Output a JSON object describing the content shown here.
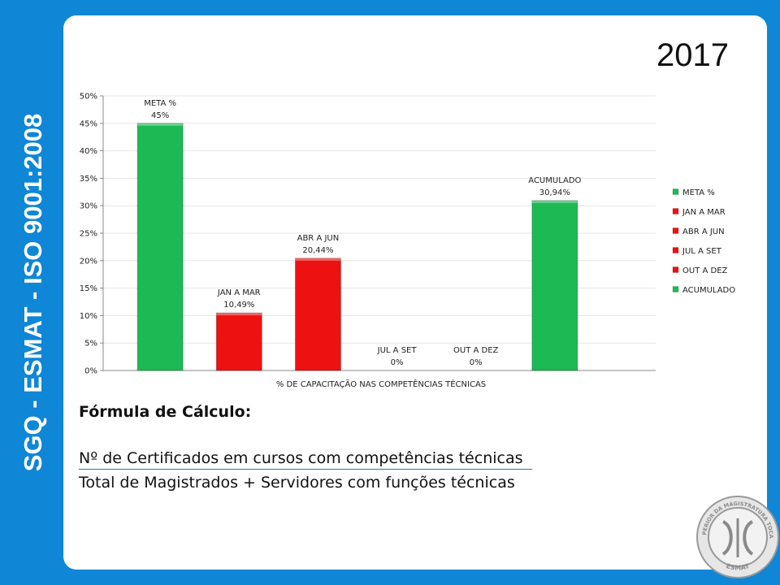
{
  "side_title": "SGQ - ESMAT - ISO 9001:2008",
  "year": "2017",
  "chart_data": {
    "type": "bar",
    "categories": [
      "META %",
      "JAN A MAR",
      "ABR A JUN",
      "JUL A SET",
      "OUT A DEZ",
      "ACUMULADO"
    ],
    "values": [
      45,
      10.49,
      20.44,
      0,
      0,
      30.94
    ],
    "data_labels": [
      "45%",
      "10,49%",
      "20,44%",
      "0%",
      "0%",
      "30,94%"
    ],
    "colors": [
      "#1db954",
      "#ee1111",
      "#ee1111",
      "#ee1111",
      "#ee1111",
      "#1db954"
    ],
    "xlabel": "% DE CAPACITAÇÃO NAS COMPETÊNCIAS TÉCNICAS",
    "ylabel": "",
    "ylim": [
      0,
      50
    ],
    "yticks": [
      "0%",
      "5%",
      "10%",
      "15%",
      "20%",
      "25%",
      "30%",
      "35%",
      "40%",
      "45%",
      "50%"
    ],
    "grid": true,
    "legend_position": "right",
    "legend": [
      "META %",
      "JAN A MAR",
      "ABR A JUN",
      "JUL A SET",
      "OUT A DEZ",
      "ACUMULADO"
    ]
  },
  "formula": {
    "title": "Fórmula de Cálculo:",
    "numerator": "Nº de Certificados em cursos com competências técnicas",
    "denominator": "Total de Magistrados  + Servidores com funções técnicas"
  },
  "seal": {
    "text_top": "ESCOLA SUPERIOR DA MAGISTRATURA TOCANTINENSE",
    "text_bottom": "ESMAT"
  }
}
